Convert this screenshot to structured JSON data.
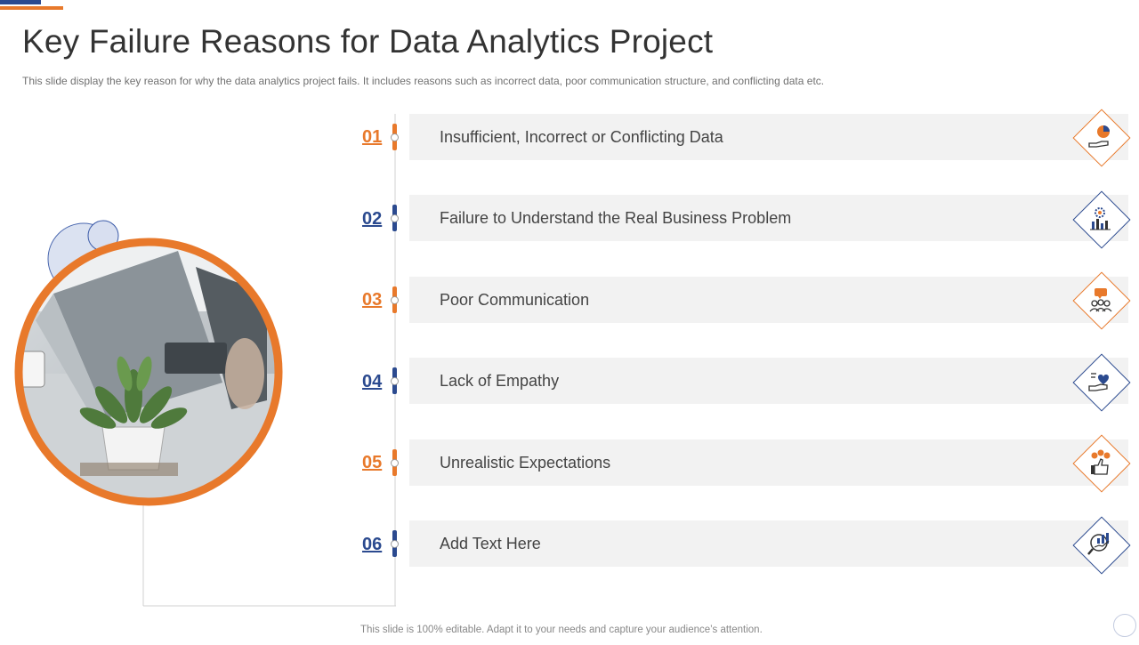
{
  "slide": {
    "title": "Key Failure Reasons for Data Analytics Project",
    "subtitle": "This slide display the key reason for why the data analytics project fails. It includes reasons such as incorrect data, poor communication structure, and conflicting data etc.",
    "footer": "This slide is 100% editable. Adapt it to your needs and capture your audience’s attention."
  },
  "colors": {
    "orange": "#e8792b",
    "blue": "#2b4a8f",
    "bar": "#f2f2f2",
    "text": "#444444"
  },
  "items": [
    {
      "number": "01",
      "label": "Insufficient, Incorrect or Conflicting Data",
      "accent": "orange",
      "icon": "hand-pie-chart-icon"
    },
    {
      "number": "02",
      "label": "Failure to Understand the Real Business Problem",
      "accent": "blue",
      "icon": "gear-bar-chart-icon"
    },
    {
      "number": "03",
      "label": "Poor Communication",
      "accent": "orange",
      "icon": "team-chat-icon"
    },
    {
      "number": "04",
      "label": "Lack of Empathy",
      "accent": "blue",
      "icon": "hand-heart-icon"
    },
    {
      "number": "05",
      "label": "Unrealistic Expectations",
      "accent": "orange",
      "icon": "thumbs-up-coins-icon"
    },
    {
      "number": "06",
      "label": "Add Text Here",
      "accent": "blue",
      "icon": "magnifier-chart-icon"
    }
  ]
}
